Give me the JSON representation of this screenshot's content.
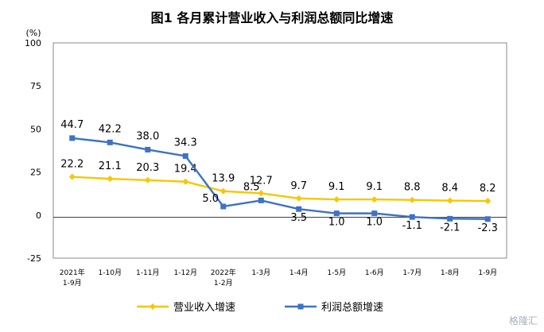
{
  "chart_data": {
    "type": "line",
    "title": "图1  各月累计营业收入与利润总额同比增速",
    "ylabel": "(%)",
    "xlabel": "",
    "ylim": [
      -25,
      100
    ],
    "yticks": [
      "100",
      "75",
      "50",
      "25",
      "0",
      "-25"
    ],
    "categories": [
      [
        "2021年",
        "1-9月"
      ],
      [
        "1-10月"
      ],
      [
        "1-11月"
      ],
      [
        "1-12月"
      ],
      [
        "2022年",
        "1-2月"
      ],
      [
        "1-3月"
      ],
      [
        "1-4月"
      ],
      [
        "1-5月"
      ],
      [
        "1-6月"
      ],
      [
        "1-7月"
      ],
      [
        "1-8月"
      ],
      [
        "1-9月"
      ]
    ],
    "series": [
      {
        "name": "营业收入增速",
        "color": "#f5c800",
        "values": [
          22.2,
          21.1,
          20.3,
          19.4,
          13.9,
          12.7,
          9.7,
          9.1,
          9.1,
          8.8,
          8.4,
          8.2
        ],
        "labels": [
          "22.2",
          "21.1",
          "20.3",
          "19.4",
          "13.9",
          "12.7",
          "9.7",
          "9.1",
          "9.1",
          "8.8",
          "8.4",
          "8.2"
        ]
      },
      {
        "name": "利润总额增速",
        "color": "#3d72c4",
        "values": [
          44.7,
          42.2,
          38.0,
          34.3,
          5.0,
          8.5,
          3.5,
          1.0,
          1.0,
          -1.1,
          -2.1,
          -2.3
        ],
        "labels": [
          "44.7",
          "42.2",
          "38.0",
          "34.3",
          "5.0",
          "8.5",
          "3.5",
          "1.0",
          "1.0",
          "-1.1",
          "-2.1",
          "-2.3"
        ]
      }
    ],
    "grid": false,
    "legend": "bottom"
  },
  "watermark": "格隆汇"
}
